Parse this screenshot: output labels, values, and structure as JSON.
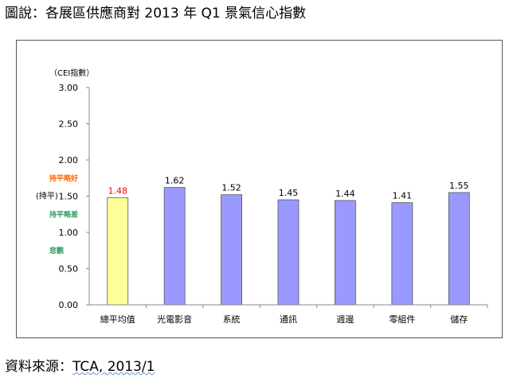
{
  "caption": "圖說：各展區供應商對 2013 年 Q1 景氣信心指數",
  "source_label": "資料來源：",
  "source_value": "TCA, 2013/1",
  "chart_data": {
    "type": "bar",
    "ylabel": "（CEI指數）",
    "ylim": [
      0,
      3
    ],
    "yticks": [
      "0.00",
      "0.50",
      "1.00",
      "1.50",
      "2.00",
      "2.50",
      "3.00"
    ],
    "categories": [
      "總平均值",
      "光電影音",
      "系統",
      "通訊",
      "週邊",
      "零組件",
      "儲存"
    ],
    "values": [
      1.48,
      1.62,
      1.52,
      1.45,
      1.44,
      1.41,
      1.55
    ],
    "value_labels": [
      "1.48",
      "1.62",
      "1.52",
      "1.45",
      "1.44",
      "1.41",
      "1.55"
    ],
    "bar_colors": [
      "#ffff99",
      "#9999ff",
      "#9999ff",
      "#9999ff",
      "#9999ff",
      "#9999ff",
      "#9999ff"
    ],
    "label_colors": [
      "#ff0000",
      "#000000",
      "#000000",
      "#000000",
      "#000000",
      "#000000",
      "#000000"
    ],
    "level_annotations": [
      {
        "text": "持平略好",
        "value": 1.75,
        "color": "#ff6600"
      },
      {
        "text": "(持平)",
        "value": 1.5,
        "color": "#000000"
      },
      {
        "text": "持平略差",
        "value": 1.25,
        "color": "#339966"
      },
      {
        "text": "悲觀",
        "value": 0.75,
        "color": "#339966"
      }
    ],
    "grid": false
  }
}
